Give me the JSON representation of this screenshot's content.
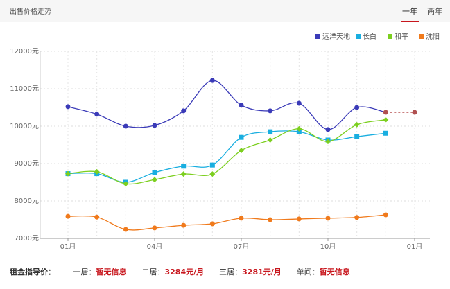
{
  "header": {
    "title": "出售价格走势",
    "tabs": [
      "一年",
      "两年"
    ]
  },
  "chart_data": {
    "type": "line",
    "categories": [
      "01月",
      null,
      null,
      "04月",
      null,
      null,
      "07月",
      null,
      null,
      "10月",
      null,
      null,
      "01月"
    ],
    "ylim": [
      7000,
      12000
    ],
    "yticks": [
      {
        "value": 7000,
        "label": "7000元"
      },
      {
        "value": 8000,
        "label": "8000元"
      },
      {
        "value": 9000,
        "label": "9000元"
      },
      {
        "value": 10000,
        "label": "10000元"
      },
      {
        "value": 11000,
        "label": "11000元"
      },
      {
        "value": 12000,
        "label": "12000元"
      }
    ],
    "grid": true,
    "legend": "top-right",
    "series": [
      {
        "name": "远洋天地",
        "color": "#3b3bb8",
        "marker": "circle",
        "dashed_last_segment": true,
        "values": [
          10520,
          10320,
          10000,
          10020,
          10410,
          11220,
          10560,
          10410,
          10610,
          9910,
          10500,
          10370,
          10370
        ]
      },
      {
        "name": "长白",
        "color": "#19aee0",
        "marker": "square",
        "values": [
          8730,
          8730,
          8500,
          8760,
          8930,
          8960,
          9700,
          9850,
          9850,
          9630,
          9720,
          9810,
          null
        ]
      },
      {
        "name": "和平",
        "color": "#7ccf1f",
        "marker": "diamond",
        "values": [
          8730,
          8780,
          8460,
          8570,
          8720,
          8720,
          9350,
          9630,
          9930,
          9590,
          10040,
          10170,
          null
        ]
      },
      {
        "name": "沈阳",
        "color": "#f07a1c",
        "marker": "circle",
        "values": [
          7590,
          7570,
          7240,
          7280,
          7350,
          7390,
          7540,
          7500,
          7520,
          7540,
          7560,
          7630,
          null
        ]
      }
    ]
  },
  "footer": {
    "label": "租金指导价：",
    "items": [
      {
        "name": "一居：",
        "value": "暂无信息"
      },
      {
        "name": "二居：",
        "value": "3284元/月"
      },
      {
        "name": "三居：",
        "value": "3281元/月"
      },
      {
        "name": "单间：",
        "value": "暂无信息"
      }
    ]
  }
}
